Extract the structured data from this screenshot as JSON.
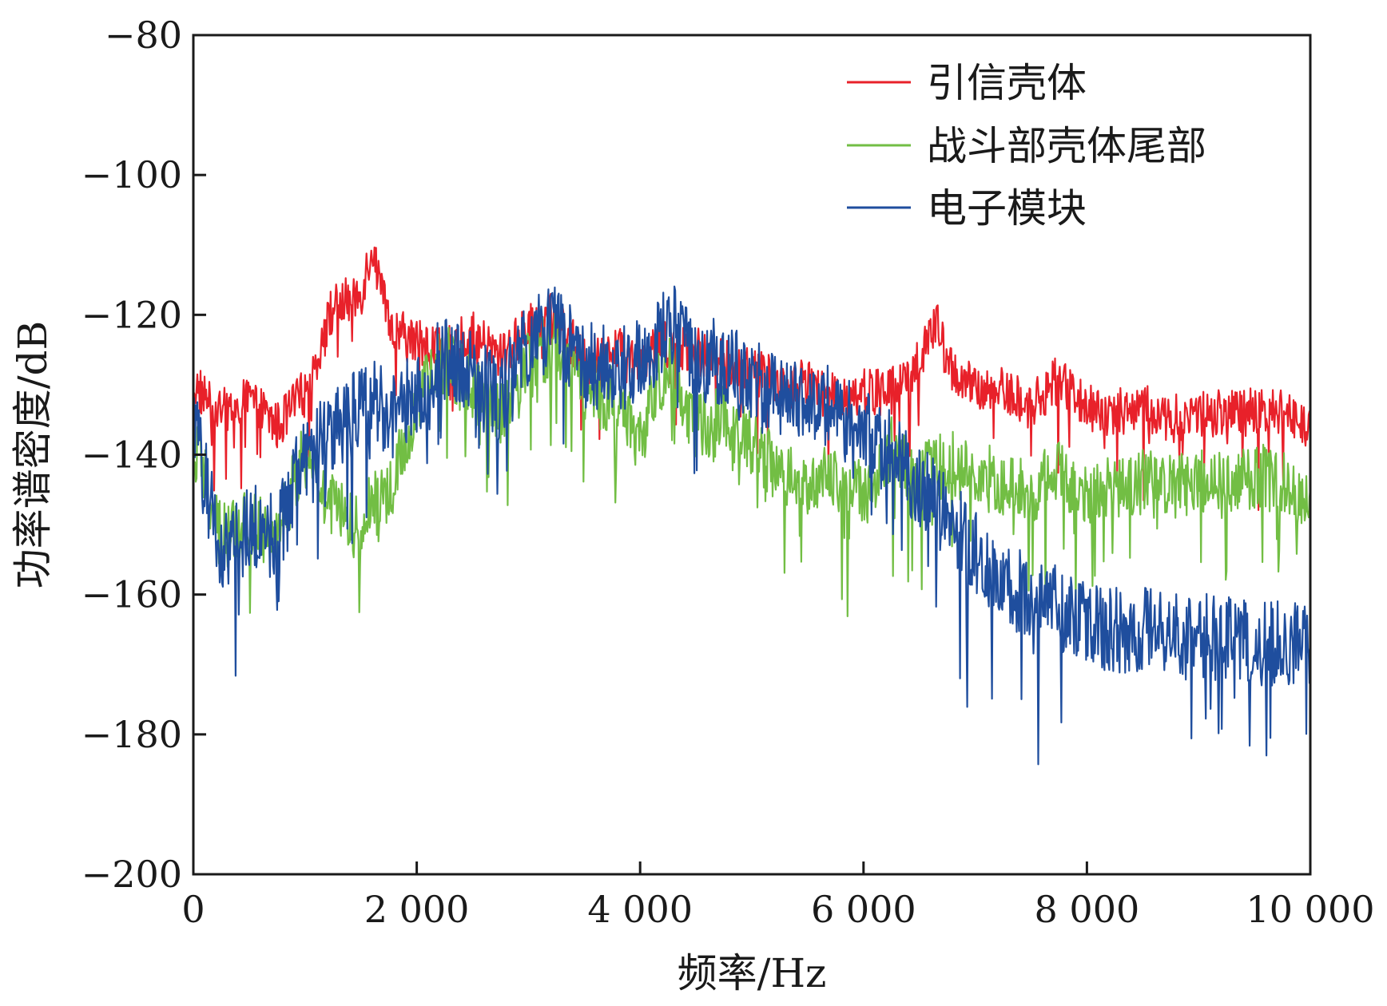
{
  "chart_data": {
    "type": "line",
    "title": "",
    "xlabel": "频率/Hz",
    "ylabel": "功率谱密度/dB",
    "xlim": [
      0,
      10000
    ],
    "ylim": [
      -200,
      -80
    ],
    "xticks": [
      0,
      2000,
      4000,
      6000,
      8000,
      10000
    ],
    "xtick_labels": [
      "0",
      "2 000",
      "4 000",
      "6 000",
      "8 000",
      "10 000"
    ],
    "yticks": [
      -80,
      -100,
      -120,
      -140,
      -160,
      -180,
      -200
    ],
    "ytick_labels": [
      "−80",
      "−100",
      "−120",
      "−140",
      "−160",
      "−180",
      "−200"
    ],
    "grid": false,
    "legend_position": "top-right",
    "x": [
      0,
      250,
      500,
      750,
      1000,
      1250,
      1500,
      1600,
      1750,
      2000,
      2250,
      2500,
      2750,
      3000,
      3250,
      3500,
      3750,
      4000,
      4250,
      4500,
      4750,
      5000,
      5250,
      5500,
      5750,
      6000,
      6250,
      6500,
      6650,
      6750,
      7000,
      7250,
      7500,
      7750,
      8000,
      8250,
      8500,
      8750,
      9000,
      9250,
      9500,
      9750,
      10000
    ],
    "series": [
      {
        "name": "引信壳体",
        "color": "#e8212a",
        "values": [
          -130,
          -134,
          -132,
          -136,
          -131,
          -119,
          -117,
          -110,
          -122,
          -124,
          -125,
          -123,
          -126,
          -122,
          -120,
          -127,
          -125,
          -126,
          -124,
          -125,
          -127,
          -128,
          -130,
          -130,
          -132,
          -131,
          -131,
          -127,
          -121,
          -127,
          -131,
          -131,
          -133,
          -129,
          -133,
          -134,
          -133,
          -135,
          -134,
          -134,
          -134,
          -134,
          -136
        ]
      },
      {
        "name": "战斗部壳体尾部",
        "color": "#72be44",
        "values": [
          -138,
          -152,
          -150,
          -151,
          -140,
          -148,
          -151,
          -147,
          -146,
          -133,
          -126,
          -131,
          -135,
          -126,
          -124,
          -131,
          -132,
          -138,
          -126,
          -136,
          -135,
          -139,
          -142,
          -144,
          -143,
          -146,
          -139,
          -143,
          -142,
          -141,
          -143,
          -144,
          -146,
          -142,
          -146,
          -145,
          -144,
          -145,
          -143,
          -145,
          -143,
          -144,
          -146
        ]
      },
      {
        "name": "电子模块",
        "color": "#1f4e9e",
        "values": [
          -136,
          -155,
          -150,
          -152,
          -140,
          -137,
          -133,
          -132,
          -135,
          -131,
          -126,
          -128,
          -132,
          -124,
          -122,
          -127,
          -128,
          -127,
          -121,
          -126,
          -127,
          -129,
          -131,
          -132,
          -134,
          -137,
          -140,
          -144,
          -146,
          -149,
          -154,
          -158,
          -161,
          -162,
          -164,
          -165,
          -165,
          -166,
          -166,
          -166,
          -167,
          -167,
          -167
        ]
      }
    ]
  }
}
